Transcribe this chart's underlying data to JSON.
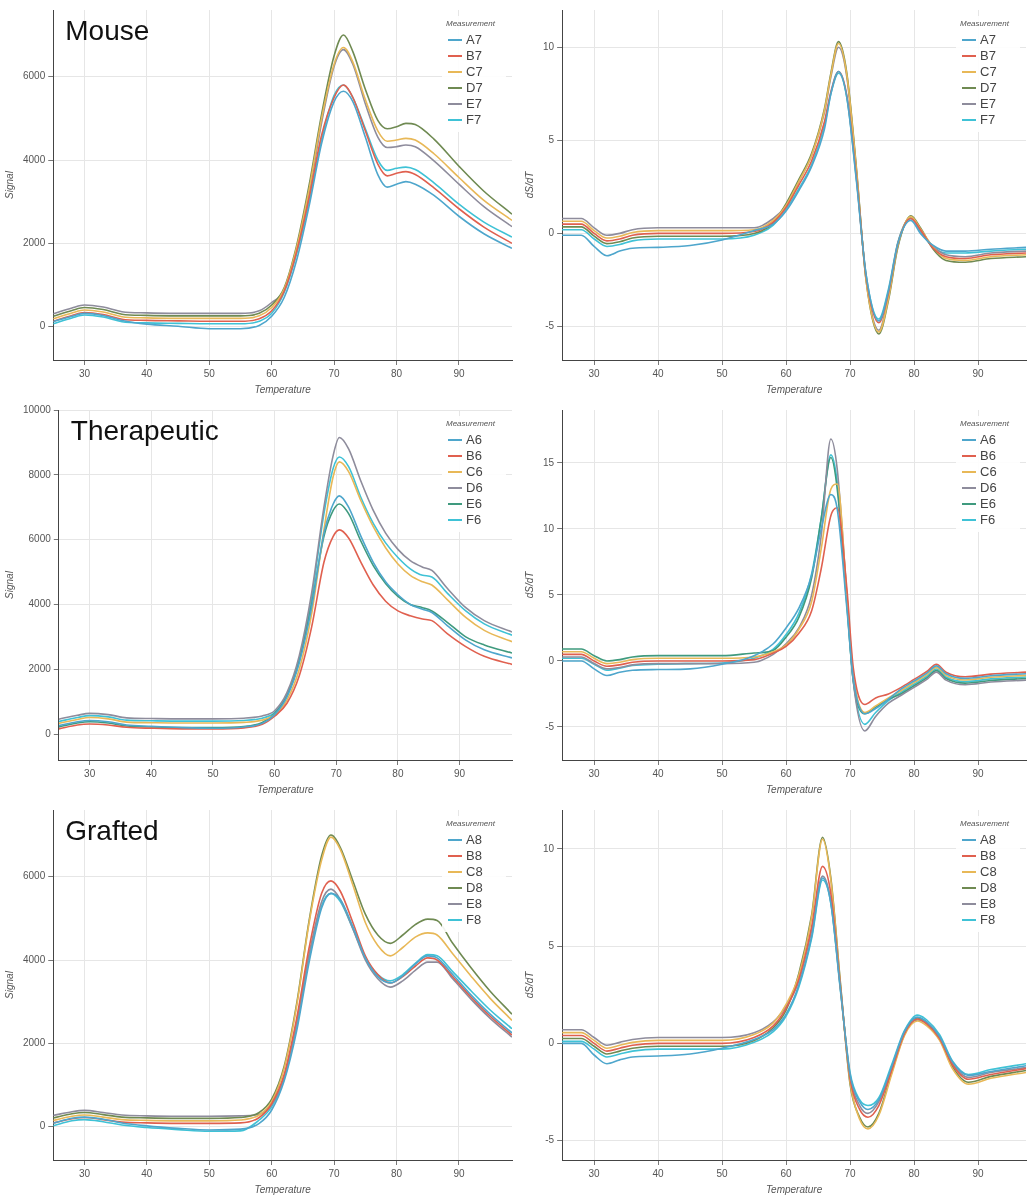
{
  "chart_data": [
    {
      "type": "line",
      "title": "Mouse",
      "xlabel": "Temperature",
      "ylabel": "Signal",
      "legend_title": "Measurement",
      "legend": "top right",
      "grid": true,
      "marker": "none",
      "line_style": "solid",
      "xlim": [
        25,
        98.5
      ],
      "xticks": [
        30,
        40,
        50,
        60,
        70,
        80,
        90
      ],
      "ylim": [
        -800,
        7600
      ],
      "yticks": [
        0,
        2000,
        4000,
        6000
      ],
      "x": [
        25,
        28,
        30,
        33,
        36,
        40,
        45,
        50,
        55,
        58,
        60,
        62,
        64,
        66,
        68,
        70,
        71.5,
        73,
        75,
        77,
        78.5,
        80,
        81.5,
        83,
        86,
        90,
        94,
        98.5
      ],
      "series": [
        {
          "name": "A7",
          "color": "#4ea6cc",
          "values": [
            120,
            250,
            320,
            270,
            150,
            60,
            10,
            -50,
            -50,
            30,
            250,
            700,
            1600,
            2900,
            4400,
            5400,
            5650,
            5400,
            4550,
            3650,
            3350,
            3420,
            3480,
            3420,
            3150,
            2650,
            2230,
            1880
          ]
        },
        {
          "name": "B7",
          "color": "#e0604f",
          "values": [
            130,
            270,
            340,
            290,
            180,
            150,
            140,
            130,
            130,
            190,
            380,
            850,
            1800,
            3100,
            4600,
            5500,
            5800,
            5500,
            4700,
            3900,
            3620,
            3680,
            3720,
            3650,
            3330,
            2830,
            2390,
            2000
          ]
        },
        {
          "name": "C7",
          "color": "#e8b857",
          "values": [
            190,
            330,
            400,
            350,
            240,
            210,
            200,
            200,
            200,
            260,
            460,
            900,
            1900,
            3300,
            5000,
            6300,
            6700,
            6350,
            5450,
            4700,
            4450,
            4480,
            4520,
            4480,
            4150,
            3580,
            3030,
            2550
          ]
        },
        {
          "name": "D7",
          "color": "#6f8a52",
          "values": [
            250,
            390,
            460,
            410,
            300,
            270,
            260,
            260,
            260,
            320,
            520,
            930,
            1950,
            3400,
            5100,
            6500,
            7000,
            6600,
            5700,
            4950,
            4750,
            4800,
            4880,
            4850,
            4500,
            3850,
            3250,
            2700
          ]
        },
        {
          "name": "E7",
          "color": "#8e8c9c",
          "values": [
            310,
            450,
            520,
            470,
            360,
            330,
            320,
            320,
            320,
            380,
            580,
            880,
            1850,
            3200,
            4900,
            6250,
            6650,
            6300,
            5350,
            4550,
            4300,
            4320,
            4360,
            4320,
            3980,
            3420,
            2880,
            2400
          ]
        },
        {
          "name": "F7",
          "color": "#3fc2d6",
          "values": [
            70,
            210,
            280,
            230,
            120,
            90,
            80,
            70,
            70,
            130,
            320,
            820,
            1750,
            3000,
            4500,
            5550,
            5800,
            5500,
            4750,
            4000,
            3750,
            3800,
            3830,
            3770,
            3450,
            2940,
            2510,
            2150
          ]
        }
      ]
    },
    {
      "type": "line",
      "xlabel": "Temperature",
      "ylabel": "dS/dT",
      "legend_title": "Measurement",
      "legend": "top right",
      "grid": true,
      "marker": "none",
      "line_style": "solid",
      "xlim": [
        25,
        97.5
      ],
      "xticks": [
        30,
        40,
        50,
        60,
        70,
        80,
        90
      ],
      "ylim": [
        -6.8,
        12
      ],
      "yticks": [
        -5,
        0,
        5,
        10
      ],
      "x": [
        25,
        28,
        30,
        32,
        34,
        36,
        40,
        45,
        50,
        55,
        58,
        60,
        62,
        64,
        66,
        67,
        68.2,
        69.5,
        71,
        72.5,
        74.5,
        76,
        77.5,
        79.5,
        81,
        83,
        85,
        88,
        92,
        97.5
      ],
      "series": [
        {
          "name": "A7",
          "color": "#4ea6cc",
          "values": [
            -0.1,
            -0.1,
            -0.7,
            -1.2,
            -0.95,
            -0.8,
            -0.75,
            -0.65,
            -0.35,
            0.15,
            0.5,
            1.2,
            2.3,
            3.6,
            5.6,
            7.5,
            8.7,
            7.3,
            2.8,
            -2.2,
            -4.7,
            -3.1,
            -0.5,
            0.7,
            0,
            -0.65,
            -0.95,
            -0.95,
            -0.85,
            -0.75
          ]
        },
        {
          "name": "B7",
          "color": "#e0604f",
          "values": [
            0.5,
            0.5,
            0,
            -0.4,
            -0.3,
            -0.1,
            0,
            0,
            0,
            0.1,
            0.6,
            1.4,
            2.6,
            3.9,
            6.0,
            7.6,
            8.7,
            7.4,
            3.0,
            -2.3,
            -4.8,
            -3.2,
            -0.5,
            0.8,
            0.2,
            -0.8,
            -1.25,
            -1.35,
            -1.15,
            -1.05
          ]
        },
        {
          "name": "C7",
          "color": "#e8b857",
          "values": [
            0.65,
            0.65,
            0.15,
            -0.25,
            -0.15,
            0.05,
            0.15,
            0.15,
            0.15,
            0.2,
            0.7,
            1.5,
            2.8,
            4.2,
            6.6,
            8.5,
            10.2,
            8.5,
            3.4,
            -2.5,
            -5.3,
            -3.5,
            -0.6,
            0.9,
            0.25,
            -0.75,
            -1.35,
            -1.45,
            -1.25,
            -1.15
          ]
        },
        {
          "name": "D7",
          "color": "#6f8a52",
          "values": [
            0.35,
            0.35,
            -0.15,
            -0.55,
            -0.45,
            -0.25,
            -0.15,
            -0.15,
            -0.15,
            0,
            0.55,
            1.6,
            2.9,
            4.3,
            6.7,
            8.6,
            10.3,
            8.6,
            3.5,
            -2.5,
            -5.4,
            -3.6,
            -0.7,
            0.95,
            0.3,
            -0.85,
            -1.45,
            -1.55,
            -1.35,
            -1.25
          ]
        },
        {
          "name": "E7",
          "color": "#8e8c9c",
          "values": [
            0.8,
            0.8,
            0.3,
            -0.1,
            0,
            0.2,
            0.3,
            0.3,
            0.3,
            0.3,
            0.8,
            1.5,
            2.8,
            4.2,
            6.5,
            8.4,
            10.0,
            8.4,
            3.3,
            -2.4,
            -5.2,
            -3.4,
            -0.6,
            0.8,
            0.15,
            -0.7,
            -1.15,
            -1.25,
            -1.05,
            -0.95
          ]
        },
        {
          "name": "F7",
          "color": "#3fc2d6",
          "values": [
            0.2,
            0.2,
            -0.3,
            -0.7,
            -0.6,
            -0.4,
            -0.3,
            -0.3,
            -0.3,
            -0.1,
            0.45,
            1.3,
            2.4,
            3.7,
            5.8,
            7.5,
            8.6,
            7.3,
            2.9,
            -2.2,
            -4.6,
            -3.0,
            -0.45,
            0.85,
            0.1,
            -0.75,
            -1.05,
            -1.05,
            -0.95,
            -0.85
          ]
        }
      ]
    },
    {
      "type": "line",
      "title": "Therapeutic",
      "xlabel": "Temperature",
      "ylabel": "Signal",
      "legend_title": "Measurement",
      "legend": "top right",
      "grid": true,
      "marker": "none",
      "line_style": "solid",
      "xlim": [
        25,
        98.5
      ],
      "xticks": [
        30,
        40,
        50,
        60,
        70,
        80,
        90
      ],
      "ylim": [
        -800,
        10000
      ],
      "yticks": [
        0,
        2000,
        4000,
        6000,
        8000,
        10000
      ],
      "x": [
        25,
        28,
        30,
        33,
        36,
        40,
        45,
        50,
        55,
        58,
        60,
        62,
        64,
        66,
        68,
        69.5,
        70.5,
        72,
        74,
        76,
        78,
        80,
        82,
        84,
        85.5,
        88,
        91,
        94,
        98.5
      ],
      "series": [
        {
          "name": "A6",
          "color": "#4ea6cc",
          "values": [
            260,
            380,
            420,
            380,
            280,
            240,
            200,
            180,
            220,
            330,
            600,
            1150,
            2200,
            3900,
            6200,
            7100,
            7350,
            7000,
            6100,
            5300,
            4700,
            4300,
            4000,
            3850,
            3750,
            3350,
            2900,
            2600,
            2350
          ]
        },
        {
          "name": "B6",
          "color": "#e0604f",
          "values": [
            160,
            280,
            310,
            280,
            210,
            180,
            160,
            160,
            190,
            300,
            550,
            950,
            1800,
            3300,
            5300,
            6100,
            6300,
            6050,
            5300,
            4600,
            4100,
            3800,
            3650,
            3550,
            3500,
            3100,
            2700,
            2400,
            2150
          ]
        },
        {
          "name": "C6",
          "color": "#e8b857",
          "values": [
            330,
            450,
            510,
            470,
            370,
            350,
            340,
            340,
            360,
            430,
            600,
            1050,
            2000,
            3700,
            6300,
            7950,
            8400,
            8100,
            7200,
            6400,
            5750,
            5250,
            4900,
            4700,
            4600,
            4150,
            3600,
            3200,
            2850
          ]
        },
        {
          "name": "D6",
          "color": "#8e8c9c",
          "values": [
            460,
            580,
            640,
            600,
            500,
            480,
            470,
            470,
            490,
            560,
            720,
            1280,
            2420,
            4350,
            7000,
            8600,
            9150,
            8800,
            7800,
            6900,
            6200,
            5700,
            5350,
            5150,
            5050,
            4500,
            3900,
            3500,
            3150
          ]
        },
        {
          "name": "E6",
          "color": "#3f9a7e",
          "values": [
            220,
            340,
            380,
            340,
            250,
            220,
            200,
            200,
            230,
            360,
            630,
            1180,
            2250,
            4000,
            6100,
            6900,
            7100,
            6800,
            5950,
            5200,
            4650,
            4250,
            4000,
            3900,
            3800,
            3450,
            3000,
            2750,
            2500
          ]
        },
        {
          "name": "F6",
          "color": "#3fc2d6",
          "values": [
            390,
            510,
            570,
            530,
            430,
            410,
            400,
            400,
            420,
            490,
            660,
            1200,
            2300,
            4200,
            6800,
            8200,
            8550,
            8250,
            7300,
            6500,
            5900,
            5450,
            5100,
            4900,
            4850,
            4350,
            3800,
            3400,
            3050
          ]
        }
      ]
    },
    {
      "type": "line",
      "xlabel": "Temperature",
      "ylabel": "dS/dT",
      "legend_title": "Measurement",
      "legend": "top right",
      "grid": true,
      "marker": "none",
      "line_style": "solid",
      "xlim": [
        25,
        97.5
      ],
      "xticks": [
        30,
        40,
        50,
        60,
        70,
        80,
        90
      ],
      "ylim": [
        -7.5,
        19
      ],
      "yticks": [
        -5,
        0,
        5,
        10,
        15
      ],
      "x": [
        25,
        28,
        30,
        32,
        34,
        36,
        40,
        45,
        50,
        55,
        58,
        60,
        62,
        64,
        65.5,
        67,
        68,
        69.5,
        70.5,
        72.3,
        74,
        76,
        78,
        80,
        82,
        83.5,
        85,
        88,
        92,
        97.5
      ],
      "series": [
        {
          "name": "A6",
          "color": "#4ea6cc",
          "values": [
            0.0,
            0.0,
            -0.6,
            -1.1,
            -0.85,
            -0.7,
            -0.65,
            -0.6,
            -0.25,
            0.4,
            1.3,
            2.5,
            4.0,
            6.5,
            10.0,
            12.6,
            11.5,
            4.0,
            -1.3,
            -4.0,
            -3.6,
            -2.9,
            -2.12,
            -1.52,
            -0.92,
            -0.37,
            -0.97,
            -1.32,
            -1.12,
            -0.97
          ]
        },
        {
          "name": "B6",
          "color": "#e0604f",
          "values": [
            0.5,
            0.5,
            0,
            -0.4,
            -0.3,
            -0.1,
            0,
            0,
            0,
            0.1,
            0.6,
            1.1,
            2.1,
            3.8,
            7.0,
            11.0,
            11.6,
            5.5,
            -0.5,
            -3.3,
            -2.8,
            -2.5,
            -2.0,
            -1.4,
            -0.8,
            -0.25,
            -0.85,
            -1.2,
            -1.0,
            -0.85
          ]
        },
        {
          "name": "C6",
          "color": "#e8b857",
          "values": [
            0.7,
            0.7,
            0.2,
            -0.2,
            -0.1,
            0.1,
            0.2,
            0.2,
            0.2,
            0.3,
            0.7,
            1.2,
            2.4,
            4.5,
            8.5,
            13.0,
            13.4,
            5.0,
            -1.0,
            -3.9,
            -3.4,
            -2.8,
            -2.24,
            -1.64,
            -1.04,
            -0.49,
            -1.09,
            -1.44,
            -1.24,
            -1.09
          ]
        },
        {
          "name": "D6",
          "color": "#8e8c9c",
          "values": [
            0.3,
            0.3,
            -0.2,
            -0.6,
            -0.5,
            -0.3,
            -0.2,
            -0.2,
            -0.2,
            -0.1,
            0.5,
            1.3,
            2.5,
            5.0,
            9.5,
            16.8,
            14.5,
            5.0,
            -1.5,
            -5.3,
            -4.2,
            -3.2,
            -2.6,
            -2.0,
            -1.4,
            -0.85,
            -1.45,
            -1.8,
            -1.6,
            -1.45
          ]
        },
        {
          "name": "E6",
          "color": "#3f9a7e",
          "values": [
            0.9,
            0.9,
            0.4,
            0,
            0.1,
            0.3,
            0.4,
            0.4,
            0.4,
            0.6,
            0.8,
            1.8,
            3.3,
            6.3,
            10.8,
            15.4,
            13.0,
            4.3,
            -1.5,
            -4.0,
            -3.5,
            -2.9,
            -2.48,
            -1.88,
            -1.28,
            -0.73,
            -1.33,
            -1.68,
            -1.48,
            -1.33
          ]
        },
        {
          "name": "F6",
          "color": "#3fc2d6",
          "values": [
            0.2,
            0.2,
            -0.25,
            -0.7,
            -0.55,
            -0.35,
            -0.25,
            -0.2,
            -0.15,
            0.2,
            0.9,
            2.0,
            3.6,
            6.6,
            10.8,
            15.6,
            13.5,
            4.5,
            -1.5,
            -4.8,
            -3.9,
            -3.0,
            -2.36,
            -1.76,
            -1.16,
            -0.61,
            -1.21,
            -1.56,
            -1.36,
            -1.21
          ]
        }
      ]
    },
    {
      "type": "line",
      "title": "Grafted",
      "xlabel": "Temperature",
      "ylabel": "Signal",
      "legend_title": "Measurement",
      "legend": "top right",
      "grid": true,
      "marker": "none",
      "line_style": "solid",
      "xlim": [
        25,
        98.5
      ],
      "xticks": [
        30,
        40,
        50,
        60,
        70,
        80,
        90
      ],
      "ylim": [
        -800,
        7600
      ],
      "yticks": [
        0,
        2000,
        4000,
        6000
      ],
      "x": [
        25,
        28,
        30,
        33,
        36,
        40,
        45,
        50,
        55,
        58,
        60,
        62,
        64,
        66,
        68,
        69.5,
        71,
        73,
        75,
        77,
        79,
        81,
        83,
        85,
        86.5,
        89,
        92,
        95,
        98.5
      ],
      "series": [
        {
          "name": "A8",
          "color": "#4ea6cc",
          "values": [
            80,
            200,
            230,
            180,
            90,
            20,
            -40,
            -80,
            -60,
            80,
            400,
            1100,
            2300,
            3950,
            5250,
            5600,
            5450,
            4800,
            4050,
            3600,
            3450,
            3620,
            3900,
            4100,
            4050,
            3650,
            3150,
            2700,
            2250
          ]
        },
        {
          "name": "B8",
          "color": "#e0604f",
          "values": [
            90,
            190,
            220,
            170,
            110,
            90,
            80,
            80,
            90,
            220,
            550,
            1250,
            2600,
            4300,
            5600,
            5900,
            5650,
            4900,
            4100,
            3650,
            3450,
            3600,
            3850,
            4050,
            4000,
            3600,
            3100,
            2650,
            2200
          ]
        },
        {
          "name": "C8",
          "color": "#e8b857",
          "values": [
            150,
            250,
            280,
            230,
            170,
            150,
            140,
            140,
            160,
            280,
            600,
            1400,
            2900,
            4900,
            6400,
            6950,
            6650,
            5800,
            4900,
            4350,
            4100,
            4300,
            4550,
            4650,
            4600,
            4150,
            3600,
            3080,
            2550
          ]
        },
        {
          "name": "D8",
          "color": "#6f8a52",
          "values": [
            210,
            310,
            340,
            290,
            230,
            210,
            200,
            200,
            220,
            340,
            660,
            1450,
            2950,
            4950,
            6500,
            7000,
            6700,
            5900,
            5100,
            4600,
            4400,
            4600,
            4850,
            4980,
            4950,
            4400,
            3800,
            3250,
            2700
          ]
        },
        {
          "name": "E8",
          "color": "#8e8c9c",
          "values": [
            270,
            360,
            390,
            340,
            280,
            260,
            250,
            250,
            260,
            300,
            530,
            1200,
            2500,
            4150,
            5400,
            5700,
            5450,
            4750,
            4000,
            3550,
            3350,
            3500,
            3750,
            3950,
            3950,
            3550,
            3050,
            2600,
            2150
          ]
        },
        {
          "name": "F8",
          "color": "#3fc2d6",
          "values": [
            20,
            140,
            170,
            120,
            40,
            -20,
            -70,
            -110,
            -100,
            160,
            480,
            1150,
            2400,
            4050,
            5300,
            5600,
            5400,
            4750,
            4050,
            3650,
            3500,
            3650,
            3920,
            4130,
            4100,
            3720,
            3250,
            2800,
            2350
          ]
        }
      ]
    },
    {
      "type": "line",
      "xlabel": "Temperature",
      "ylabel": "dS/dT",
      "legend_title": "Measurement",
      "legend": "top right",
      "grid": true,
      "marker": "none",
      "line_style": "solid",
      "xlim": [
        25,
        97.5
      ],
      "xticks": [
        30,
        40,
        50,
        60,
        70,
        80,
        90
      ],
      "ylim": [
        -6,
        12
      ],
      "yticks": [
        -5,
        0,
        5,
        10
      ],
      "x": [
        25,
        28,
        30,
        32,
        34,
        36,
        40,
        45,
        50,
        55,
        58,
        60,
        62,
        64,
        65.7,
        67,
        68.5,
        70,
        71.5,
        72.8,
        74.5,
        76.5,
        78.5,
        80.5,
        82,
        84,
        86,
        88.5,
        92,
        97.5
      ],
      "series": [
        {
          "name": "A8",
          "color": "#4ea6cc",
          "values": [
            0.0,
            0.0,
            -0.6,
            -1.05,
            -0.85,
            -0.7,
            -0.65,
            -0.55,
            -0.25,
            0.2,
            0.7,
            1.5,
            3.0,
            5.5,
            8.5,
            7.2,
            2.8,
            -1.6,
            -3.0,
            -3.4,
            -2.9,
            -1.2,
            0.6,
            1.35,
            1.1,
            0.35,
            -0.95,
            -1.65,
            -1.45,
            -1.15
          ]
        },
        {
          "name": "B8",
          "color": "#e0604f",
          "values": [
            0.4,
            0.4,
            0,
            -0.4,
            -0.25,
            -0.1,
            0,
            0,
            0,
            0.3,
            0.9,
            1.8,
            3.3,
            6.0,
            9.1,
            7.7,
            2.9,
            -1.8,
            -3.4,
            -3.8,
            -3.2,
            -1.4,
            0.5,
            1.25,
            1.0,
            0.25,
            -1.1,
            -1.85,
            -1.6,
            -1.3
          ]
        },
        {
          "name": "C8",
          "color": "#e8b857",
          "values": [
            0.55,
            0.55,
            0.15,
            -0.25,
            -0.1,
            0.05,
            0.15,
            0.15,
            0.15,
            0.45,
            1.05,
            2.0,
            3.5,
            6.5,
            10.5,
            8.4,
            3.0,
            -2.0,
            -3.9,
            -4.4,
            -3.7,
            -1.6,
            0.4,
            1.15,
            0.9,
            0.15,
            -1.3,
            -2.1,
            -1.8,
            -1.5
          ]
        },
        {
          "name": "D8",
          "color": "#6f8a52",
          "values": [
            0.25,
            0.25,
            -0.15,
            -0.55,
            -0.4,
            -0.25,
            -0.15,
            -0.15,
            -0.15,
            0.15,
            0.8,
            1.7,
            3.6,
            6.6,
            10.6,
            8.5,
            3.1,
            -2.1,
            -3.8,
            -4.3,
            -3.6,
            -1.5,
            0.45,
            1.3,
            1.05,
            0.3,
            -1.2,
            -2.0,
            -1.7,
            -1.4
          ]
        },
        {
          "name": "E8",
          "color": "#8e8c9c",
          "values": [
            0.7,
            0.7,
            0.3,
            -0.1,
            0.05,
            0.2,
            0.3,
            0.3,
            0.3,
            0.55,
            1.1,
            1.9,
            3.2,
            5.8,
            8.6,
            7.3,
            2.8,
            -1.7,
            -3.2,
            -3.6,
            -3.0,
            -1.3,
            0.55,
            1.2,
            1.0,
            0.2,
            -1.05,
            -1.75,
            -1.5,
            -1.25
          ]
        },
        {
          "name": "F8",
          "color": "#3fc2d6",
          "values": [
            0.1,
            0.1,
            -0.3,
            -0.7,
            -0.55,
            -0.4,
            -0.3,
            -0.3,
            -0.3,
            0.05,
            0.6,
            1.4,
            2.9,
            5.4,
            8.4,
            7.2,
            2.7,
            -1.5,
            -2.9,
            -3.2,
            -2.8,
            -1.1,
            0.65,
            1.45,
            1.2,
            0.45,
            -0.9,
            -1.6,
            -1.35,
            -1.05
          ]
        }
      ]
    }
  ]
}
